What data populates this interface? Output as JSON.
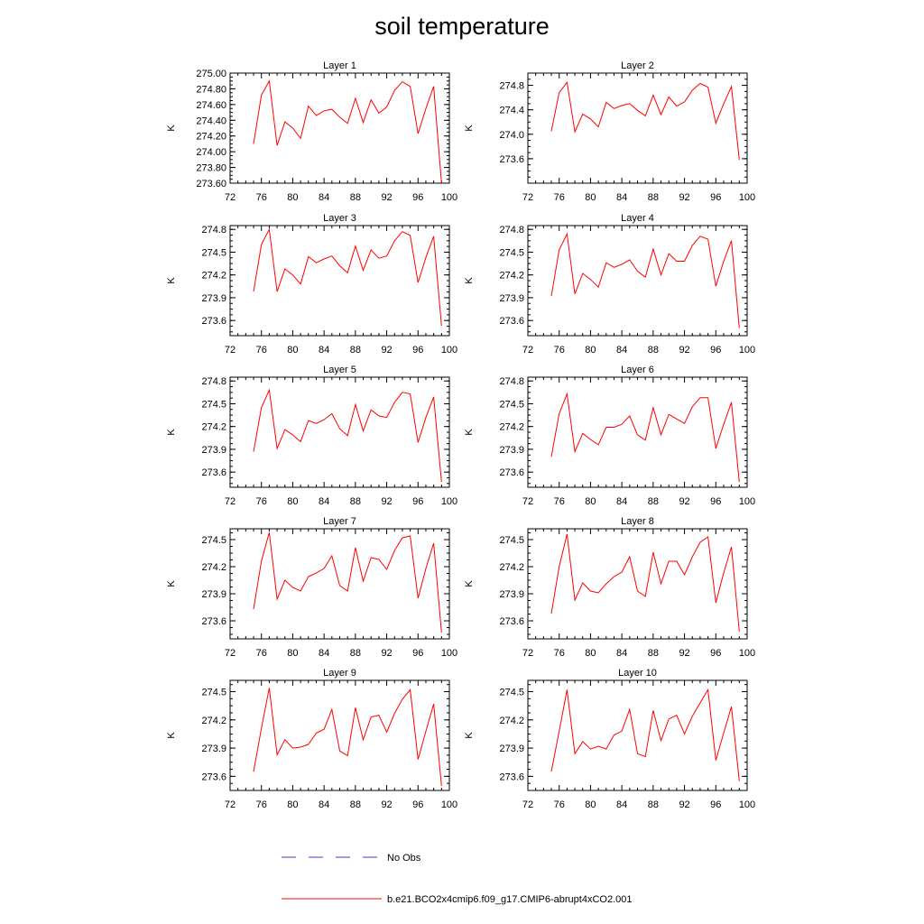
{
  "figure": {
    "title": "soil temperature"
  },
  "colors": {
    "model_line": "#ff0000",
    "obs_line": "#3b3bcc",
    "axis": "#000000"
  },
  "legend": {
    "placement": "bottom-center",
    "entries": [
      {
        "label": "No Obs",
        "style": "dashed",
        "color": "#3b3bcc"
      },
      {
        "label": "b.e21.BCO2x4cmip6.f09_g17.CMIP6-abrupt4xCO2.001",
        "style": "solid",
        "color": "#ff0000"
      }
    ]
  },
  "chart_data": [
    {
      "type": "line",
      "title": "Layer 1",
      "ylabel": "K",
      "xlabel": "",
      "xlim": [
        72,
        100
      ],
      "xticks": [
        "72",
        "76",
        "80",
        "84",
        "88",
        "92",
        "96",
        "100"
      ],
      "ylim": [
        273.6,
        275.0
      ],
      "yticks": [
        "273.60",
        "273.80",
        "274.00",
        "274.20",
        "274.40",
        "274.60",
        "274.80",
        "275.00"
      ],
      "x": [
        75,
        76,
        77,
        78,
        79,
        80,
        81,
        82,
        83,
        84,
        85,
        86,
        87,
        88,
        89,
        90,
        91,
        92,
        93,
        94,
        95,
        96,
        97,
        98,
        99
      ],
      "series": [
        {
          "values": [
            274.1,
            274.72,
            274.9,
            274.08,
            274.38,
            274.3,
            274.17,
            274.58,
            274.46,
            274.52,
            274.54,
            274.44,
            274.36,
            274.68,
            274.37,
            274.66,
            274.49,
            274.57,
            274.78,
            274.89,
            274.83,
            274.23,
            274.55,
            274.83,
            273.6
          ]
        }
      ]
    },
    {
      "type": "line",
      "title": "Layer 2",
      "ylabel": "K",
      "xlabel": "",
      "xlim": [
        72,
        100
      ],
      "xticks": [
        "72",
        "76",
        "80",
        "84",
        "88",
        "92",
        "96",
        "100"
      ],
      "ylim": [
        273.2,
        275.0
      ],
      "yticks": [
        "273.6",
        "274.0",
        "274.4",
        "274.8"
      ],
      "x": [
        75,
        76,
        77,
        78,
        79,
        80,
        81,
        82,
        83,
        84,
        85,
        86,
        87,
        88,
        89,
        90,
        91,
        92,
        93,
        94,
        95,
        96,
        97,
        98,
        99
      ],
      "series": [
        {
          "values": [
            274.05,
            274.68,
            274.85,
            274.04,
            274.33,
            274.25,
            274.12,
            274.52,
            274.42,
            274.47,
            274.5,
            274.39,
            274.3,
            274.64,
            274.32,
            274.61,
            274.46,
            274.53,
            274.72,
            274.83,
            274.77,
            274.18,
            274.5,
            274.78,
            273.58
          ]
        }
      ]
    },
    {
      "type": "line",
      "title": "Layer 3",
      "ylabel": "K",
      "xlabel": "",
      "xlim": [
        72,
        100
      ],
      "xticks": [
        "72",
        "76",
        "80",
        "84",
        "88",
        "92",
        "96",
        "100"
      ],
      "ylim": [
        273.4,
        274.85
      ],
      "yticks": [
        "273.6",
        "273.9",
        "274.2",
        "274.5",
        "274.8"
      ],
      "x": [
        75,
        76,
        77,
        78,
        79,
        80,
        81,
        82,
        83,
        84,
        85,
        86,
        87,
        88,
        89,
        90,
        91,
        92,
        93,
        94,
        95,
        96,
        97,
        98,
        99
      ],
      "series": [
        {
          "values": [
            273.98,
            274.6,
            274.8,
            273.98,
            274.28,
            274.2,
            274.08,
            274.44,
            274.36,
            274.41,
            274.45,
            274.32,
            274.23,
            274.58,
            274.26,
            274.53,
            274.42,
            274.45,
            274.65,
            274.77,
            274.72,
            274.1,
            274.43,
            274.71,
            273.53
          ]
        }
      ]
    },
    {
      "type": "line",
      "title": "Layer 4",
      "ylabel": "K",
      "xlabel": "",
      "xlim": [
        72,
        100
      ],
      "xticks": [
        "72",
        "76",
        "80",
        "84",
        "88",
        "92",
        "96",
        "100"
      ],
      "ylim": [
        273.4,
        274.85
      ],
      "yticks": [
        "273.6",
        "273.9",
        "274.2",
        "274.5",
        "274.8"
      ],
      "x": [
        75,
        76,
        77,
        78,
        79,
        80,
        81,
        82,
        83,
        84,
        85,
        86,
        87,
        88,
        89,
        90,
        91,
        92,
        93,
        94,
        95,
        96,
        97,
        98,
        99
      ],
      "series": [
        {
          "values": [
            273.92,
            274.53,
            274.74,
            273.95,
            274.22,
            274.14,
            274.04,
            274.36,
            274.3,
            274.34,
            274.4,
            274.25,
            274.17,
            274.54,
            274.2,
            274.48,
            274.38,
            274.38,
            274.59,
            274.71,
            274.67,
            274.05,
            274.38,
            274.65,
            273.5
          ]
        }
      ]
    },
    {
      "type": "line",
      "title": "Layer 5",
      "ylabel": "K",
      "xlabel": "",
      "xlim": [
        72,
        100
      ],
      "xticks": [
        "72",
        "76",
        "80",
        "84",
        "88",
        "92",
        "96",
        "100"
      ],
      "ylim": [
        273.4,
        274.85
      ],
      "yticks": [
        "273.6",
        "273.9",
        "274.2",
        "274.5",
        "274.8"
      ],
      "x": [
        75,
        76,
        77,
        78,
        79,
        80,
        81,
        82,
        83,
        84,
        85,
        86,
        87,
        88,
        89,
        90,
        91,
        92,
        93,
        94,
        95,
        96,
        97,
        98,
        99
      ],
      "series": [
        {
          "values": [
            273.87,
            274.45,
            274.68,
            273.91,
            274.16,
            274.09,
            274.0,
            274.28,
            274.24,
            274.29,
            274.37,
            274.17,
            274.08,
            274.49,
            274.14,
            274.42,
            274.34,
            274.32,
            274.52,
            274.65,
            274.63,
            273.99,
            274.32,
            274.59,
            273.47
          ]
        }
      ]
    },
    {
      "type": "line",
      "title": "Layer 6",
      "ylabel": "K",
      "xlabel": "",
      "xlim": [
        72,
        100
      ],
      "xticks": [
        "72",
        "76",
        "80",
        "84",
        "88",
        "92",
        "96",
        "100"
      ],
      "ylim": [
        273.4,
        274.85
      ],
      "yticks": [
        "273.6",
        "273.9",
        "274.2",
        "274.5",
        "274.8"
      ],
      "x": [
        75,
        76,
        77,
        78,
        79,
        80,
        81,
        82,
        83,
        84,
        85,
        86,
        87,
        88,
        89,
        90,
        91,
        92,
        93,
        94,
        95,
        96,
        97,
        98,
        99
      ],
      "series": [
        {
          "values": [
            273.8,
            274.37,
            274.63,
            273.87,
            274.11,
            274.03,
            273.96,
            274.19,
            274.19,
            274.23,
            274.34,
            274.09,
            274.02,
            274.45,
            274.09,
            274.36,
            274.3,
            274.24,
            274.46,
            274.58,
            274.58,
            273.91,
            274.23,
            274.52,
            273.47
          ]
        }
      ]
    },
    {
      "type": "line",
      "title": "Layer 7",
      "ylabel": "K",
      "xlabel": "",
      "xlim": [
        72,
        100
      ],
      "xticks": [
        "72",
        "76",
        "80",
        "84",
        "88",
        "92",
        "96",
        "100"
      ],
      "ylim": [
        273.4,
        274.62
      ],
      "yticks": [
        "273.6",
        "273.9",
        "274.2",
        "274.5"
      ],
      "x": [
        75,
        76,
        77,
        78,
        79,
        80,
        81,
        82,
        83,
        84,
        85,
        86,
        87,
        88,
        89,
        90,
        91,
        92,
        93,
        94,
        95,
        96,
        97,
        98,
        99
      ],
      "series": [
        {
          "values": [
            273.73,
            274.26,
            274.58,
            273.84,
            274.05,
            273.97,
            273.93,
            274.09,
            274.13,
            274.18,
            274.32,
            273.99,
            273.93,
            274.41,
            274.04,
            274.3,
            274.28,
            274.17,
            274.38,
            274.52,
            274.54,
            273.85,
            274.18,
            274.46,
            273.47
          ]
        }
      ]
    },
    {
      "type": "line",
      "title": "Layer 8",
      "ylabel": "K",
      "xlabel": "",
      "xlim": [
        72,
        100
      ],
      "xticks": [
        "72",
        "76",
        "80",
        "84",
        "88",
        "92",
        "96",
        "100"
      ],
      "ylim": [
        273.4,
        274.62
      ],
      "yticks": [
        "273.6",
        "273.9",
        "274.2",
        "274.5"
      ],
      "x": [
        75,
        76,
        77,
        78,
        79,
        80,
        81,
        82,
        83,
        84,
        85,
        86,
        87,
        88,
        89,
        90,
        91,
        92,
        93,
        94,
        95,
        96,
        97,
        98,
        99
      ],
      "series": [
        {
          "values": [
            273.68,
            274.2,
            274.56,
            273.83,
            274.02,
            273.93,
            273.91,
            274.01,
            274.09,
            274.14,
            274.31,
            273.93,
            273.87,
            274.36,
            274.01,
            274.26,
            274.26,
            274.11,
            274.31,
            274.47,
            274.53,
            273.8,
            274.13,
            274.42,
            273.48
          ]
        }
      ]
    },
    {
      "type": "line",
      "title": "Layer 9",
      "ylabel": "K",
      "xlabel": "",
      "xlim": [
        72,
        100
      ],
      "xticks": [
        "72",
        "76",
        "80",
        "84",
        "88",
        "92",
        "96",
        "100"
      ],
      "ylim": [
        273.45,
        274.62
      ],
      "yticks": [
        "273.6",
        "273.9",
        "274.2",
        "274.5"
      ],
      "x": [
        75,
        76,
        77,
        78,
        79,
        80,
        81,
        82,
        83,
        84,
        85,
        86,
        87,
        88,
        89,
        90,
        91,
        92,
        93,
        94,
        95,
        96,
        97,
        98,
        99
      ],
      "series": [
        {
          "values": [
            273.65,
            274.11,
            274.54,
            273.83,
            273.99,
            273.9,
            273.91,
            273.94,
            274.06,
            274.1,
            274.31,
            273.87,
            273.82,
            274.33,
            273.99,
            274.23,
            274.25,
            274.07,
            274.27,
            274.42,
            274.52,
            273.78,
            274.08,
            274.37,
            273.5
          ]
        }
      ]
    },
    {
      "type": "line",
      "title": "Layer 10",
      "ylabel": "K",
      "xlabel": "",
      "xlim": [
        72,
        100
      ],
      "xticks": [
        "72",
        "76",
        "80",
        "84",
        "88",
        "92",
        "96",
        "100"
      ],
      "ylim": [
        273.45,
        274.62
      ],
      "yticks": [
        "273.6",
        "273.9",
        "274.2",
        "274.5"
      ],
      "x": [
        75,
        76,
        77,
        78,
        79,
        80,
        81,
        82,
        83,
        84,
        85,
        86,
        87,
        88,
        89,
        90,
        91,
        92,
        93,
        94,
        95,
        96,
        97,
        98,
        99
      ],
      "series": [
        {
          "values": [
            273.65,
            274.08,
            274.52,
            273.84,
            273.97,
            273.89,
            273.92,
            273.89,
            274.04,
            274.08,
            274.31,
            273.84,
            273.81,
            274.3,
            273.98,
            274.21,
            274.25,
            274.05,
            274.24,
            274.38,
            274.52,
            273.77,
            274.06,
            274.34,
            273.55
          ]
        }
      ]
    }
  ]
}
